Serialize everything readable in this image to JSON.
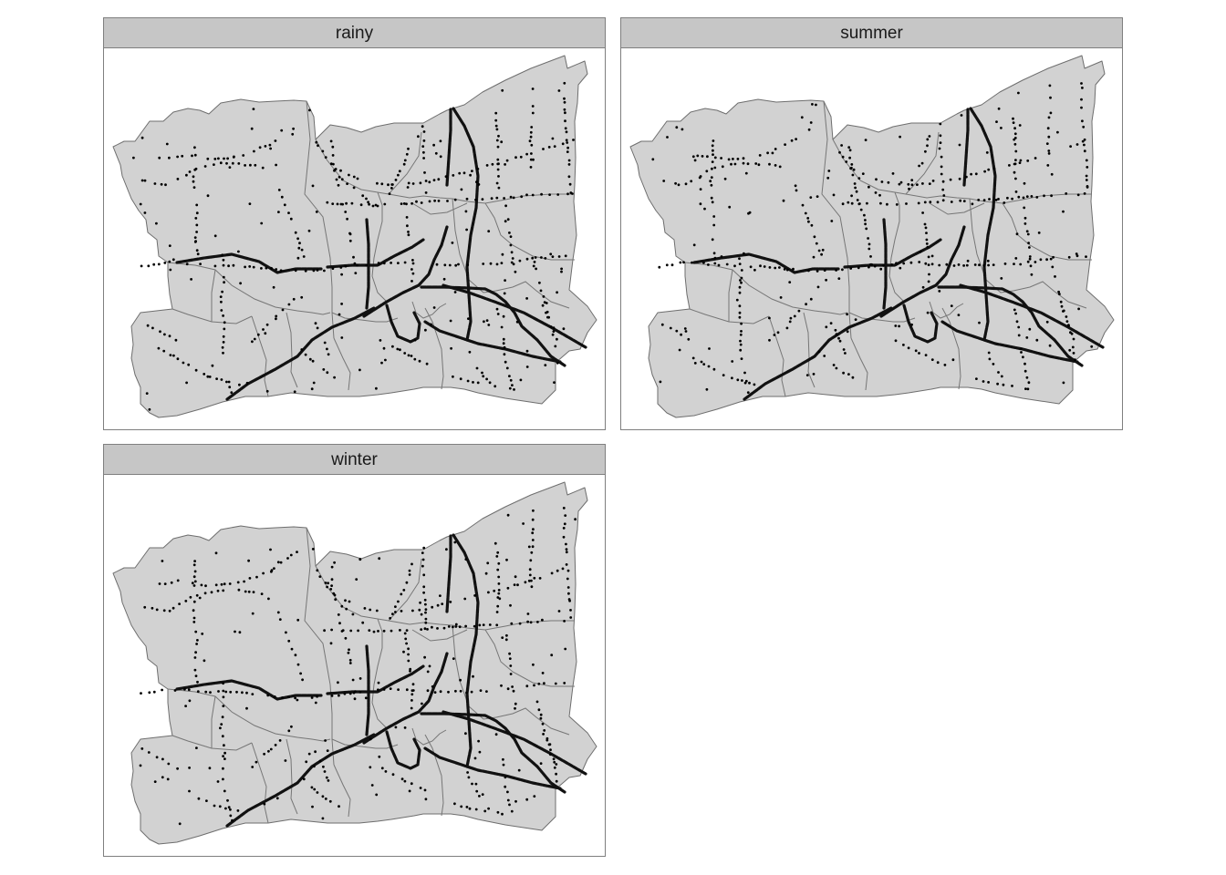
{
  "figure": {
    "background": "#ffffff",
    "panel_background": "#ffffff",
    "strip_color": "#c6c6c6",
    "region_fill": "#d2d2d2",
    "region_stroke": "#6e6e6e",
    "point_color": "#000000"
  },
  "facets": [
    {
      "key": "rainy",
      "label": "rainy",
      "seed": 11
    },
    {
      "key": "summer",
      "label": "summer",
      "seed": 29
    },
    {
      "key": "winter",
      "label": "winter",
      "seed": 47
    }
  ]
}
